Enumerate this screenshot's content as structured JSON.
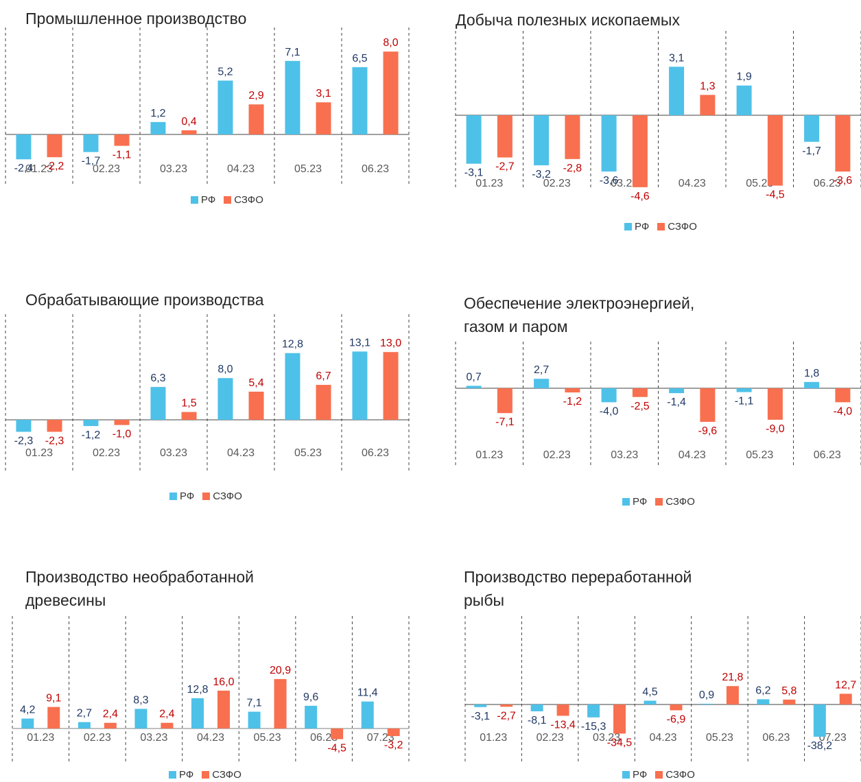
{
  "colors": {
    "rf": "#4ec1e8",
    "szfo": "#f8704f",
    "rf_label": "#1f3864",
    "szfo_label": "#c00000",
    "tick": "#595959"
  },
  "chart_data": [
    {
      "type": "bar",
      "title": "Промышленное производство",
      "categories": [
        "01.23",
        "02.23",
        "03.23",
        "04.23",
        "05.23",
        "06.23"
      ],
      "series": [
        {
          "name": "РФ",
          "values": [
            -2.4,
            -1.7,
            1.2,
            5.2,
            7.1,
            6.5
          ],
          "labels": [
            "-2,4",
            "-1,7",
            "1,2",
            "5,2",
            "7,1",
            "6,5"
          ]
        },
        {
          "name": "СЗФО",
          "values": [
            -2.2,
            -1.1,
            0.4,
            2.9,
            3.1,
            8.0
          ],
          "labels": [
            "-2,2",
            "-1,1",
            "0,4",
            "2,9",
            "3,1",
            "8,0"
          ]
        }
      ],
      "legend": "bottom"
    },
    {
      "type": "bar",
      "title": "Добыча полезных ископаемых",
      "categories": [
        "01.23",
        "02.23",
        "03.23",
        "04.23",
        "05.23",
        "06.23"
      ],
      "series": [
        {
          "name": "РФ",
          "values": [
            -3.1,
            -3.2,
            -3.6,
            3.1,
            1.9,
            -1.7
          ],
          "labels": [
            "-3,1",
            "-3,2",
            "-3,6",
            "3,1",
            "1,9",
            "-1,7"
          ]
        },
        {
          "name": "СЗФО",
          "values": [
            -2.7,
            -2.8,
            -4.6,
            1.3,
            -4.5,
            -3.6
          ],
          "labels": [
            "-2,7",
            "-2,8",
            "-4,6",
            "1,3",
            "-4,5",
            "-3,6"
          ]
        }
      ],
      "legend": "bottom"
    },
    {
      "type": "bar",
      "title": "Обрабатывающие производства",
      "categories": [
        "01.23",
        "02.23",
        "03.23",
        "04.23",
        "05.23",
        "06.23"
      ],
      "series": [
        {
          "name": "РФ",
          "values": [
            -2.3,
            -1.2,
            6.3,
            8.0,
            12.8,
            13.1
          ],
          "labels": [
            "-2,3",
            "-1,2",
            "6,3",
            "8,0",
            "12,8",
            "13,1"
          ]
        },
        {
          "name": "СЗФО",
          "values": [
            -2.3,
            -1.0,
            1.5,
            5.4,
            6.7,
            13.0
          ],
          "labels": [
            "-2,3",
            "-1,0",
            "1,5",
            "5,4",
            "6,7",
            "13,0"
          ]
        }
      ],
      "legend": "bottom"
    },
    {
      "type": "bar",
      "title": "Обеспечение электроэнергией, газом и паром",
      "title_lines": [
        "Обеспечение электроэнергией,",
        "газом и паром"
      ],
      "categories": [
        "01.23",
        "02.23",
        "03.23",
        "04.23",
        "05.23",
        "06.23"
      ],
      "series": [
        {
          "name": "РФ",
          "values": [
            0.7,
            2.7,
            -4.0,
            -1.4,
            -1.1,
            1.8
          ],
          "labels": [
            "0,7",
            "2,7",
            "-4,0",
            "-1,4",
            "-1,1",
            "1,8"
          ]
        },
        {
          "name": "СЗФО",
          "values": [
            -7.1,
            -1.2,
            -2.5,
            -9.6,
            -9.0,
            -4.0
          ],
          "labels": [
            "-7,1",
            "-1,2",
            "-2,5",
            "-9,6",
            "-9,0",
            "-4,0"
          ]
        }
      ],
      "legend": "bottom"
    },
    {
      "type": "bar",
      "title": "Производство необработанной древесины",
      "title_lines": [
        "Производство необработанной",
        "древесины"
      ],
      "categories": [
        "01.23",
        "02.23",
        "03.23",
        "04.23",
        "05.23",
        "06.23",
        "07.23"
      ],
      "series": [
        {
          "name": "РФ",
          "values": [
            4.2,
            2.7,
            8.3,
            12.8,
            7.1,
            9.6,
            11.4
          ],
          "labels": [
            "4,2",
            "2,7",
            "8,3",
            "12,8",
            "7,1",
            "9,6",
            "11,4"
          ]
        },
        {
          "name": "СЗФО",
          "values": [
            9.1,
            2.4,
            2.4,
            16.0,
            20.9,
            -4.5,
            -3.2
          ],
          "labels": [
            "9,1",
            "2,4",
            "2,4",
            "16,0",
            "20,9",
            "-4,5",
            "-3,2"
          ]
        }
      ],
      "legend": "bottom"
    },
    {
      "type": "bar",
      "title": "Производство переработанной рыбы",
      "title_lines": [
        "Производство переработанной",
        "рыбы"
      ],
      "categories": [
        "01.23",
        "02.23",
        "03.23",
        "04.23",
        "05.23",
        "06.23",
        "07.23"
      ],
      "series": [
        {
          "name": "РФ",
          "values": [
            -3.1,
            -8.1,
            -15.3,
            4.5,
            0.9,
            6.2,
            -38.2
          ],
          "labels": [
            "-3,1",
            "-8,1",
            "-15,3",
            "4,5",
            "0,9",
            "6,2",
            "-38,2"
          ]
        },
        {
          "name": "СЗФО",
          "values": [
            -2.7,
            -13.4,
            -34.5,
            -6.9,
            21.8,
            5.8,
            12.7
          ],
          "labels": [
            "-2,7",
            "-13,4",
            "-34,5",
            "-6,9",
            "21,8",
            "5,8",
            "12,7"
          ]
        }
      ],
      "legend": "bottom"
    }
  ]
}
